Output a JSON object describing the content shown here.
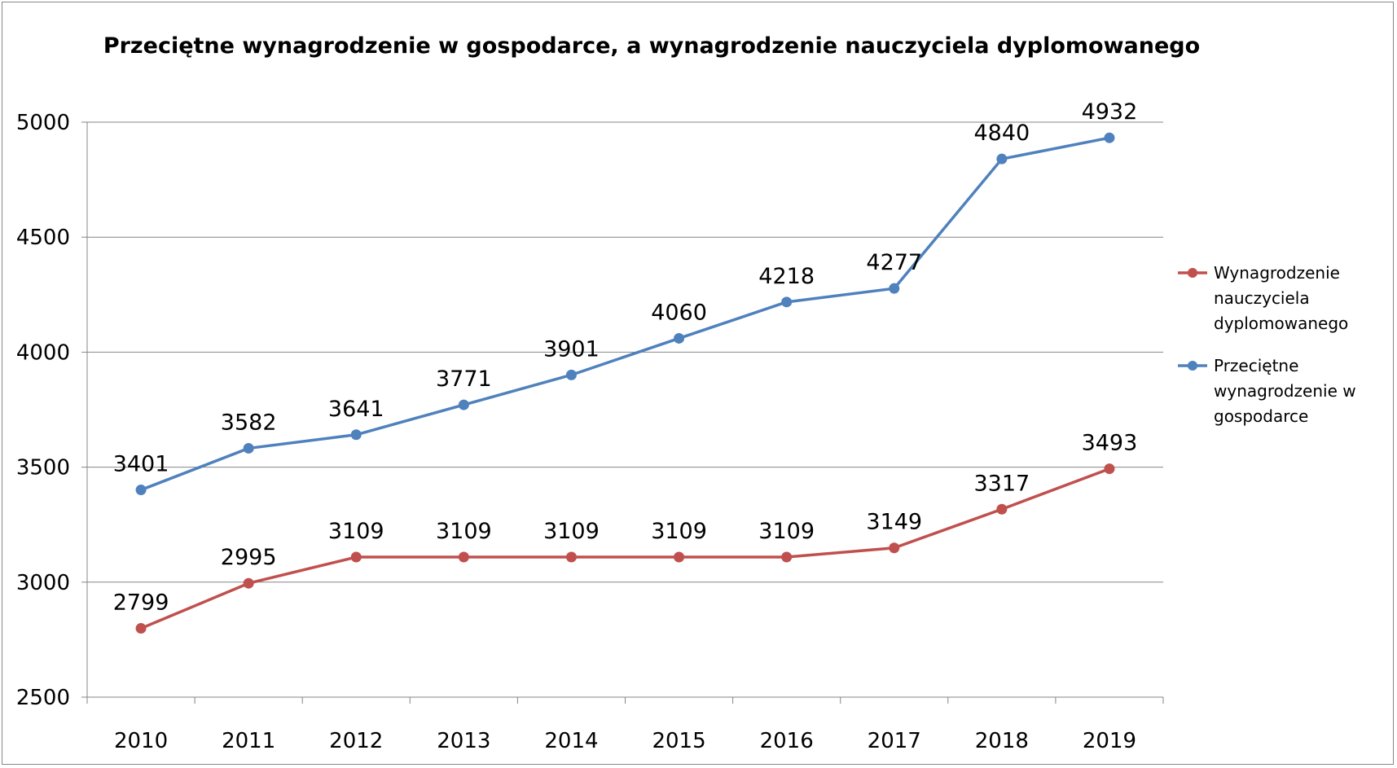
{
  "chart_data": {
    "type": "line",
    "title": "Przeciętne wynagrodzenie w gospodarce, a wynagrodzenie nauczyciela dyplomowanego",
    "xlabel": "",
    "ylabel": "",
    "categories": [
      "2010",
      "2011",
      "2012",
      "2013",
      "2014",
      "2015",
      "2016",
      "2017",
      "2018",
      "2019"
    ],
    "ylim": [
      2500,
      5000
    ],
    "yticks": [
      2500,
      3000,
      3500,
      4000,
      4500,
      5000
    ],
    "grid": true,
    "legend_position": "right",
    "series": [
      {
        "name": "Wynagrodzenie nauczyciela dyplomowanego",
        "legend_lines": [
          "Wynagrodzenie",
          "nauczyciela",
          "dyplomowanego"
        ],
        "color": "#C0504D",
        "values": [
          2799,
          2995,
          3109,
          3109,
          3109,
          3109,
          3109,
          3149,
          3317,
          3493
        ]
      },
      {
        "name": "Przeciętne wynagrodzenie w gospodarce",
        "legend_lines": [
          "Przeciętne",
          "wynagrodzenie w",
          "gospodarce"
        ],
        "color": "#4F81BD",
        "values": [
          3401,
          3582,
          3641,
          3771,
          3901,
          4060,
          4218,
          4277,
          4840,
          4932
        ]
      }
    ]
  }
}
